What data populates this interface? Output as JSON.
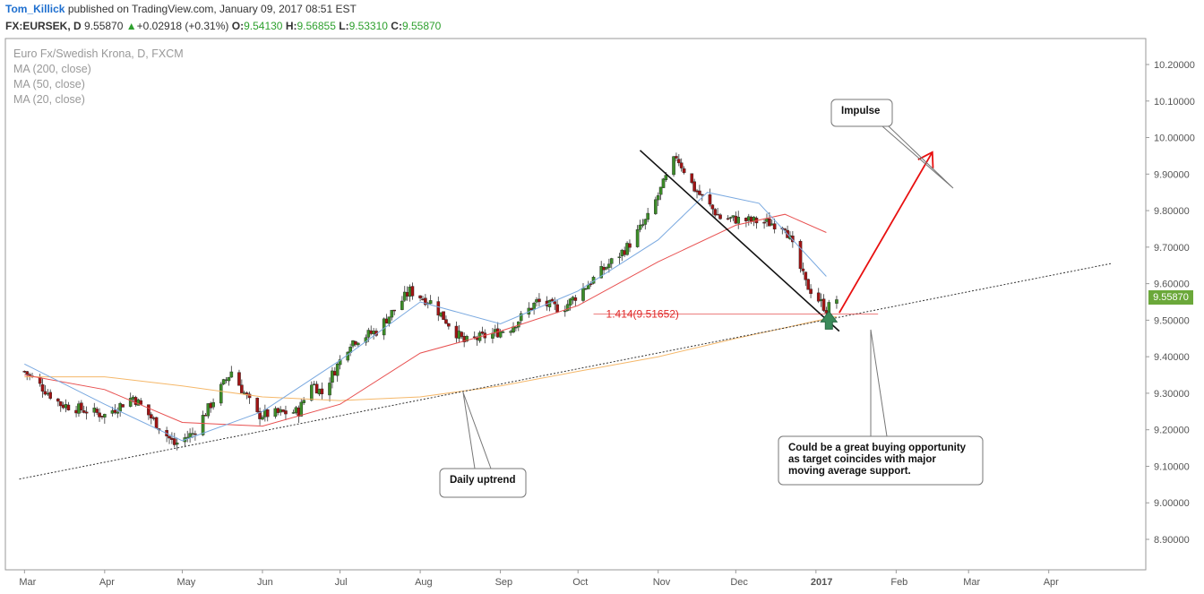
{
  "header": {
    "user": "Tom_Killick",
    "published": "published on TradingView.com, January 09, 2017 08:51 EST",
    "symbol": "FX:EURSEK, D",
    "last": "9.55870",
    "change": "+0.02918 (+0.31%)",
    "open_label": "O:",
    "open": "9.54130",
    "high_label": "H:",
    "high": "9.56855",
    "low_label": "L:",
    "low": "9.53310",
    "close_label": "C:",
    "close": "9.55870"
  },
  "legend": {
    "instrument": "Euro Fx/Swedish Krona, D, FXCM",
    "ma200": "MA (200, close)",
    "ma50": "MA (50, close)",
    "ma20": "MA (20, close)"
  },
  "colors": {
    "up": "#3c8c28",
    "down": "#a01414",
    "ma200": "#f5b86a",
    "ma50": "#e85050",
    "ma20": "#7aa9e0",
    "impulse": "#e81010",
    "price_badge": "#6ba83a",
    "fib": "#e02828"
  },
  "annotations": {
    "impulse": "Impulse",
    "daily_uptrend": "Daily uptrend",
    "buy_note": [
      "Could be a great buying opportunity",
      "as target coincides with major",
      "moving average support."
    ],
    "fib_label": "1.414(9.51652)"
  },
  "chart_data": {
    "type": "candlestick",
    "y_axis": {
      "min": 8.84,
      "max": 10.25,
      "ticks": [
        "10.20000",
        "10.10000",
        "10.00000",
        "9.90000",
        "9.80000",
        "9.70000",
        "9.60000",
        "9.50000",
        "9.40000",
        "9.30000",
        "9.20000",
        "9.10000",
        "9.00000",
        "8.90000"
      ],
      "current_price": "9.55870"
    },
    "x_axis": {
      "ticks": [
        "Mar",
        "Apr",
        "May",
        "Jun",
        "Jul",
        "Aug",
        "Sep",
        "Oct",
        "Nov",
        "Dec",
        "2017",
        "Feb",
        "Mar",
        "Apr"
      ]
    },
    "waypoints": [
      [
        "2016-03-01",
        9.36
      ],
      [
        "2016-03-15",
        9.27
      ],
      [
        "2016-04-01",
        9.24
      ],
      [
        "2016-04-12",
        9.29
      ],
      [
        "2016-04-28",
        9.16
      ],
      [
        "2016-05-05",
        9.19
      ],
      [
        "2016-05-20",
        9.36
      ],
      [
        "2016-05-30",
        9.24
      ],
      [
        "2016-06-15",
        9.25
      ],
      [
        "2016-06-20",
        9.33
      ],
      [
        "2016-06-24",
        9.3
      ],
      [
        "2016-07-05",
        9.44
      ],
      [
        "2016-07-15",
        9.47
      ],
      [
        "2016-07-28",
        9.58
      ],
      [
        "2016-08-05",
        9.55
      ],
      [
        "2016-08-18",
        9.44
      ],
      [
        "2016-08-28",
        9.46
      ],
      [
        "2016-09-05",
        9.48
      ],
      [
        "2016-09-15",
        9.55
      ],
      [
        "2016-09-25",
        9.53
      ],
      [
        "2016-10-05",
        9.6
      ],
      [
        "2016-10-20",
        9.7
      ],
      [
        "2016-10-28",
        9.78
      ],
      [
        "2016-11-08",
        9.95
      ],
      [
        "2016-11-15",
        9.86
      ],
      [
        "2016-11-25",
        9.78
      ],
      [
        "2016-12-10",
        9.77
      ],
      [
        "2016-12-20",
        9.76
      ],
      [
        "2016-12-28",
        9.6
      ],
      [
        "2017-01-05",
        9.53
      ],
      [
        "2017-01-09",
        9.5587
      ]
    ],
    "series": [
      {
        "name": "MA (200, close)",
        "points": [
          [
            "2016-03-01",
            9.345
          ],
          [
            "2016-04-01",
            9.345
          ],
          [
            "2016-05-01",
            9.32
          ],
          [
            "2016-06-01",
            9.29
          ],
          [
            "2016-07-01",
            9.28
          ],
          [
            "2016-08-01",
            9.29
          ],
          [
            "2016-09-01",
            9.32
          ],
          [
            "2016-10-01",
            9.36
          ],
          [
            "2016-11-01",
            9.4
          ],
          [
            "2016-12-01",
            9.45
          ],
          [
            "2017-01-09",
            9.51
          ]
        ]
      },
      {
        "name": "MA (50, close)",
        "points": [
          [
            "2016-03-01",
            9.35
          ],
          [
            "2016-04-01",
            9.31
          ],
          [
            "2016-05-01",
            9.22
          ],
          [
            "2016-06-01",
            9.21
          ],
          [
            "2016-07-01",
            9.27
          ],
          [
            "2016-08-01",
            9.41
          ],
          [
            "2016-09-01",
            9.47
          ],
          [
            "2016-10-01",
            9.54
          ],
          [
            "2016-11-01",
            9.66
          ],
          [
            "2016-12-01",
            9.76
          ],
          [
            "2016-12-20",
            9.79
          ],
          [
            "2017-01-05",
            9.74
          ]
        ]
      },
      {
        "name": "MA (20, close)",
        "points": [
          [
            "2016-03-01",
            9.38
          ],
          [
            "2016-04-01",
            9.27
          ],
          [
            "2016-05-01",
            9.17
          ],
          [
            "2016-06-01",
            9.25
          ],
          [
            "2016-07-01",
            9.39
          ],
          [
            "2016-08-01",
            9.55
          ],
          [
            "2016-09-01",
            9.49
          ],
          [
            "2016-10-01",
            9.58
          ],
          [
            "2016-11-01",
            9.72
          ],
          [
            "2016-11-20",
            9.85
          ],
          [
            "2016-12-10",
            9.82
          ],
          [
            "2017-01-05",
            9.62
          ]
        ]
      }
    ],
    "trendlines": [
      {
        "name": "daily-uptrend",
        "from": [
          "2016-02-28",
          9.065
        ],
        "to": [
          "2017-04-25",
          9.655
        ]
      },
      {
        "name": "downtrend",
        "from": [
          "2016-10-25",
          9.965
        ],
        "to": [
          "2017-01-10",
          9.47
        ]
      },
      {
        "name": "fib-level",
        "from": [
          "2016-10-07",
          9.5165
        ],
        "to": [
          "2017-01-25",
          9.5165
        ]
      },
      {
        "name": "impulse-arrow",
        "from": [
          "2017-01-10",
          9.52
        ],
        "to": [
          "2017-02-15",
          9.96
        ]
      }
    ]
  }
}
